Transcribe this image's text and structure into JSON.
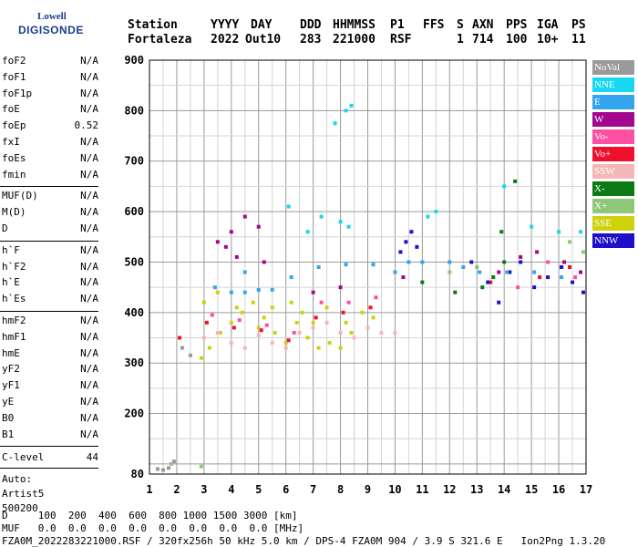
{
  "logo": {
    "line1": "Lowell",
    "line2": "DIGISONDE"
  },
  "header": {
    "labels": [
      "Station",
      "YYYY",
      "DAY",
      "DDD",
      "HHMMSS",
      "P1",
      "FFS",
      "S",
      "AXN",
      "PPS",
      "IGA",
      "PS"
    ],
    "values": [
      "Fortaleza",
      "2022",
      "Out10",
      "283",
      "221000",
      "RSF",
      "",
      "1",
      "714",
      "100",
      "10+",
      "11"
    ]
  },
  "params_group1": [
    {
      "name": "foF2",
      "value": "N/A"
    },
    {
      "name": "foF1",
      "value": "N/A"
    },
    {
      "name": "foF1p",
      "value": "N/A"
    },
    {
      "name": "foE",
      "value": "N/A"
    },
    {
      "name": "foEp",
      "value": "0.52"
    },
    {
      "name": "fxI",
      "value": "N/A"
    },
    {
      "name": "foEs",
      "value": "N/A"
    },
    {
      "name": "fmin",
      "value": "N/A"
    }
  ],
  "params_group2": [
    {
      "name": "MUF(D)",
      "value": "N/A"
    },
    {
      "name": "M(D)",
      "value": "N/A"
    },
    {
      "name": "D",
      "value": "N/A"
    }
  ],
  "params_group3": [
    {
      "name": "h`F",
      "value": "N/A"
    },
    {
      "name": "h`F2",
      "value": "N/A"
    },
    {
      "name": "h`E",
      "value": "N/A"
    },
    {
      "name": "h`Es",
      "value": "N/A"
    }
  ],
  "params_group4": [
    {
      "name": "hmF2",
      "value": "N/A"
    },
    {
      "name": "hmF1",
      "value": "N/A"
    },
    {
      "name": "hmE",
      "value": "N/A"
    },
    {
      "name": "yF2",
      "value": "N/A"
    },
    {
      "name": "yF1",
      "value": "N/A"
    },
    {
      "name": "yE",
      "value": "N/A"
    },
    {
      "name": "B0",
      "value": "N/A"
    },
    {
      "name": "B1",
      "value": "N/A"
    }
  ],
  "clevel": {
    "name": "C-level",
    "value": "44"
  },
  "auto": {
    "line1": "Auto:",
    "line2": "Artist5",
    "line3": "500200"
  },
  "legend": [
    {
      "label": "NoVal",
      "color": "#9a9a9a"
    },
    {
      "label": "NNE",
      "color": "#19d6f2"
    },
    {
      "label": "E",
      "color": "#35a4ef"
    },
    {
      "label": "W",
      "color": "#a1078f"
    },
    {
      "label": "Vo-",
      "color": "#ff4fa3"
    },
    {
      "label": "Vo+",
      "color": "#f0102e"
    },
    {
      "label": "SSW",
      "color": "#f4b7b7"
    },
    {
      "label": "X-",
      "color": "#0c7a14"
    },
    {
      "label": "X+",
      "color": "#8dc878"
    },
    {
      "label": "SSE",
      "color": "#cfd10b"
    },
    {
      "label": "NNW",
      "color": "#1d10c8"
    }
  ],
  "bottom": {
    "d_row": "D     100  200  400  600  800 1000 1500 3000 [km]",
    "muf_row": "MUF   0.0  0.0  0.0  0.0  0.0  0.0  0.0  0.0 [MHz]",
    "footer": "FZA0M_2022283221000.RSF / 320fx256h 50 kHz 5.0 km / DPS-4 FZA0M 904 / 3.9 S 321.6 E   Ion2Png 1.3.20"
  },
  "chart_data": {
    "type": "scatter",
    "xlabel": "",
    "ylabel": "",
    "xlim": [
      1,
      17
    ],
    "ylim": [
      80,
      900
    ],
    "x_ticks": [
      1,
      2,
      3,
      4,
      5,
      6,
      7,
      8,
      9,
      10,
      11,
      12,
      13,
      14,
      15,
      16,
      17
    ],
    "y_ticks": [
      80,
      200,
      300,
      400,
      500,
      600,
      700,
      800,
      900
    ],
    "grid": true,
    "legend_placement": "right",
    "series": [
      {
        "name": "SSE",
        "points": [
          [
            2.9,
            310
          ],
          [
            3.2,
            330
          ],
          [
            3.6,
            360
          ],
          [
            4.0,
            380
          ],
          [
            4.4,
            400
          ],
          [
            4.8,
            420
          ],
          [
            5.2,
            390
          ],
          [
            5.6,
            360
          ],
          [
            6.0,
            340
          ],
          [
            6.4,
            380
          ],
          [
            6.8,
            350
          ],
          [
            7.2,
            330
          ],
          [
            7.6,
            340
          ],
          [
            8.0,
            330
          ],
          [
            8.4,
            360
          ],
          [
            8.8,
            400
          ],
          [
            9.2,
            390
          ],
          [
            3.0,
            420
          ],
          [
            3.5,
            440
          ],
          [
            4.2,
            410
          ],
          [
            5.0,
            370
          ],
          [
            5.5,
            410
          ],
          [
            6.2,
            420
          ],
          [
            6.6,
            400
          ],
          [
            7.0,
            380
          ],
          [
            7.5,
            410
          ],
          [
            8.2,
            380
          ]
        ]
      },
      {
        "name": "SSW",
        "points": [
          [
            3.0,
            350
          ],
          [
            3.5,
            360
          ],
          [
            4.0,
            340
          ],
          [
            4.5,
            330
          ],
          [
            5.0,
            355
          ],
          [
            5.5,
            340
          ],
          [
            6.0,
            330
          ],
          [
            6.5,
            360
          ],
          [
            7.0,
            370
          ],
          [
            7.5,
            380
          ],
          [
            8.0,
            360
          ],
          [
            8.5,
            350
          ],
          [
            9.0,
            370
          ],
          [
            9.5,
            360
          ],
          [
            10.0,
            360
          ]
        ]
      },
      {
        "name": "Vo+",
        "points": [
          [
            2.1,
            350
          ],
          [
            3.1,
            380
          ],
          [
            4.1,
            370
          ],
          [
            5.1,
            365
          ],
          [
            6.1,
            345
          ],
          [
            7.1,
            390
          ],
          [
            8.1,
            400
          ],
          [
            9.1,
            410
          ],
          [
            13.5,
            460
          ],
          [
            14.2,
            480
          ],
          [
            15.3,
            470
          ],
          [
            16.4,
            490
          ]
        ]
      },
      {
        "name": "Vo-",
        "points": [
          [
            3.3,
            395
          ],
          [
            4.3,
            385
          ],
          [
            5.3,
            375
          ],
          [
            6.3,
            360
          ],
          [
            7.3,
            420
          ],
          [
            8.3,
            420
          ],
          [
            9.3,
            430
          ],
          [
            14.5,
            450
          ],
          [
            15.6,
            500
          ],
          [
            16.6,
            470
          ]
        ]
      },
      {
        "name": "W",
        "points": [
          [
            3.5,
            540
          ],
          [
            4.0,
            560
          ],
          [
            4.5,
            590
          ],
          [
            5.0,
            570
          ],
          [
            5.2,
            500
          ],
          [
            4.2,
            510
          ],
          [
            3.8,
            530
          ],
          [
            7.0,
            440
          ],
          [
            8.0,
            450
          ],
          [
            13.8,
            480
          ],
          [
            14.6,
            510
          ],
          [
            15.2,
            520
          ],
          [
            16.2,
            500
          ],
          [
            16.8,
            480
          ],
          [
            10.3,
            470
          ]
        ]
      },
      {
        "name": "NNW",
        "points": [
          [
            10.2,
            520
          ],
          [
            10.4,
            540
          ],
          [
            10.6,
            560
          ],
          [
            10.8,
            530
          ],
          [
            12.8,
            500
          ],
          [
            13.4,
            460
          ],
          [
            13.8,
            420
          ],
          [
            14.2,
            480
          ],
          [
            14.6,
            500
          ],
          [
            15.1,
            450
          ],
          [
            15.6,
            470
          ],
          [
            16.1,
            490
          ],
          [
            16.5,
            460
          ],
          [
            16.9,
            440
          ]
        ]
      },
      {
        "name": "E",
        "points": [
          [
            3.4,
            450
          ],
          [
            4.0,
            440
          ],
          [
            4.5,
            440
          ],
          [
            5.0,
            445
          ],
          [
            5.5,
            445
          ],
          [
            6.2,
            470
          ],
          [
            7.2,
            490
          ],
          [
            8.2,
            495
          ],
          [
            9.2,
            495
          ],
          [
            10.0,
            480
          ],
          [
            10.5,
            500
          ],
          [
            11.0,
            500
          ],
          [
            12.0,
            500
          ],
          [
            12.5,
            490
          ],
          [
            13.1,
            480
          ],
          [
            14.1,
            480
          ],
          [
            15.1,
            480
          ],
          [
            16.1,
            470
          ],
          [
            4.5,
            480
          ]
        ]
      },
      {
        "name": "NNE",
        "points": [
          [
            6.1,
            610
          ],
          [
            6.8,
            560
          ],
          [
            7.3,
            590
          ],
          [
            8.0,
            580
          ],
          [
            8.3,
            570
          ],
          [
            7.8,
            775
          ],
          [
            8.2,
            800
          ],
          [
            8.4,
            810
          ],
          [
            14.0,
            650
          ],
          [
            15.0,
            570
          ],
          [
            16.0,
            560
          ],
          [
            16.8,
            560
          ],
          [
            11.2,
            590
          ],
          [
            11.5,
            600
          ]
        ]
      },
      {
        "name": "X-",
        "points": [
          [
            12.2,
            440
          ],
          [
            13.2,
            450
          ],
          [
            13.6,
            470
          ],
          [
            14.0,
            500
          ],
          [
            14.4,
            660
          ],
          [
            13.9,
            560
          ],
          [
            11.0,
            460
          ]
        ]
      },
      {
        "name": "X+",
        "points": [
          [
            12.0,
            480
          ],
          [
            13.0,
            490
          ],
          [
            16.4,
            540
          ],
          [
            16.9,
            520
          ],
          [
            2.9,
            95
          ],
          [
            1.8,
            100
          ]
        ]
      },
      {
        "name": "NoVal",
        "points": [
          [
            1.3,
            90
          ],
          [
            1.5,
            88
          ],
          [
            1.7,
            92
          ],
          [
            1.9,
            105
          ],
          [
            2.2,
            330
          ],
          [
            2.5,
            315
          ]
        ]
      }
    ]
  }
}
